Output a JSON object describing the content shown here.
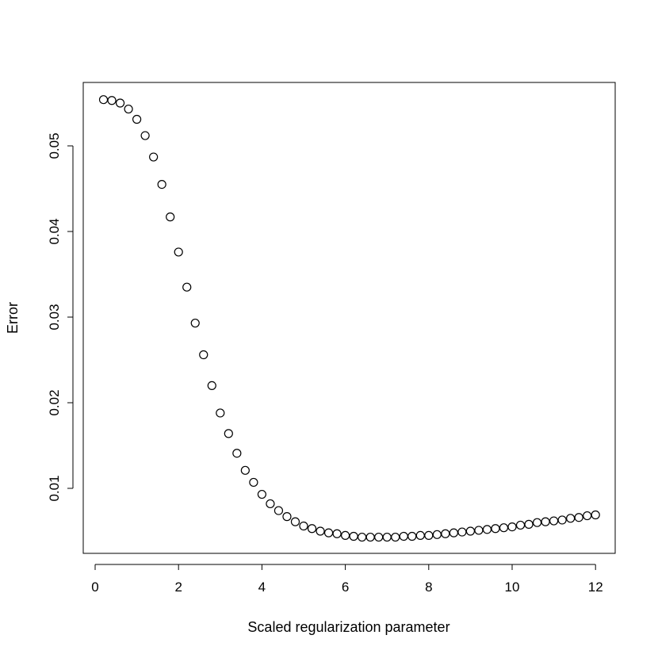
{
  "chart_data": {
    "type": "scatter",
    "title": "",
    "xlabel": "Scaled regularization parameter",
    "ylabel": "Error",
    "xlim": [
      0,
      12.5
    ],
    "ylim": [
      0.003,
      0.0555
    ],
    "xticks": [
      "0",
      "2",
      "4",
      "6",
      "8",
      "10",
      "12"
    ],
    "yticks": [
      "0.01",
      "0.02",
      "0.03",
      "0.04",
      "0.05"
    ],
    "grid": false,
    "legend": "none",
    "marker_color": "#000000",
    "series": [
      {
        "x": [
          0.2,
          0.4,
          0.6,
          0.8,
          1.0,
          1.2,
          1.4,
          1.6,
          1.8,
          2.0,
          2.2,
          2.4,
          2.6,
          2.8,
          3.0,
          3.2,
          3.4,
          3.6,
          3.8,
          4.0,
          4.2,
          4.4,
          4.6,
          4.8,
          5.0,
          5.2,
          5.4,
          5.6,
          5.8,
          6.0,
          6.2,
          6.4,
          6.6,
          6.8,
          7.0,
          7.2,
          7.4,
          7.6,
          7.8,
          8.0,
          8.2,
          8.4,
          8.6,
          8.8,
          9.0,
          9.2,
          9.4,
          9.6,
          9.8,
          10.0,
          10.2,
          10.4,
          10.6,
          10.8,
          11.0,
          11.2,
          11.4,
          11.6,
          11.8,
          12.0
        ],
        "y": [
          0.0554,
          0.0553,
          0.055,
          0.0543,
          0.0531,
          0.0512,
          0.0487,
          0.0455,
          0.0417,
          0.0376,
          0.0335,
          0.0293,
          0.0256,
          0.022,
          0.0188,
          0.0164,
          0.0141,
          0.0121,
          0.0107,
          0.0093,
          0.0082,
          0.0074,
          0.0067,
          0.0061,
          0.0056,
          0.0053,
          0.005,
          0.0048,
          0.0047,
          0.0045,
          0.0044,
          0.0043,
          0.0043,
          0.0043,
          0.0043,
          0.0043,
          0.0044,
          0.0044,
          0.0045,
          0.0045,
          0.0046,
          0.0047,
          0.0048,
          0.0049,
          0.005,
          0.0051,
          0.0052,
          0.0053,
          0.0054,
          0.0055,
          0.0057,
          0.0058,
          0.006,
          0.0061,
          0.0062,
          0.0063,
          0.0065,
          0.0066,
          0.0068,
          0.0069
        ]
      }
    ]
  }
}
